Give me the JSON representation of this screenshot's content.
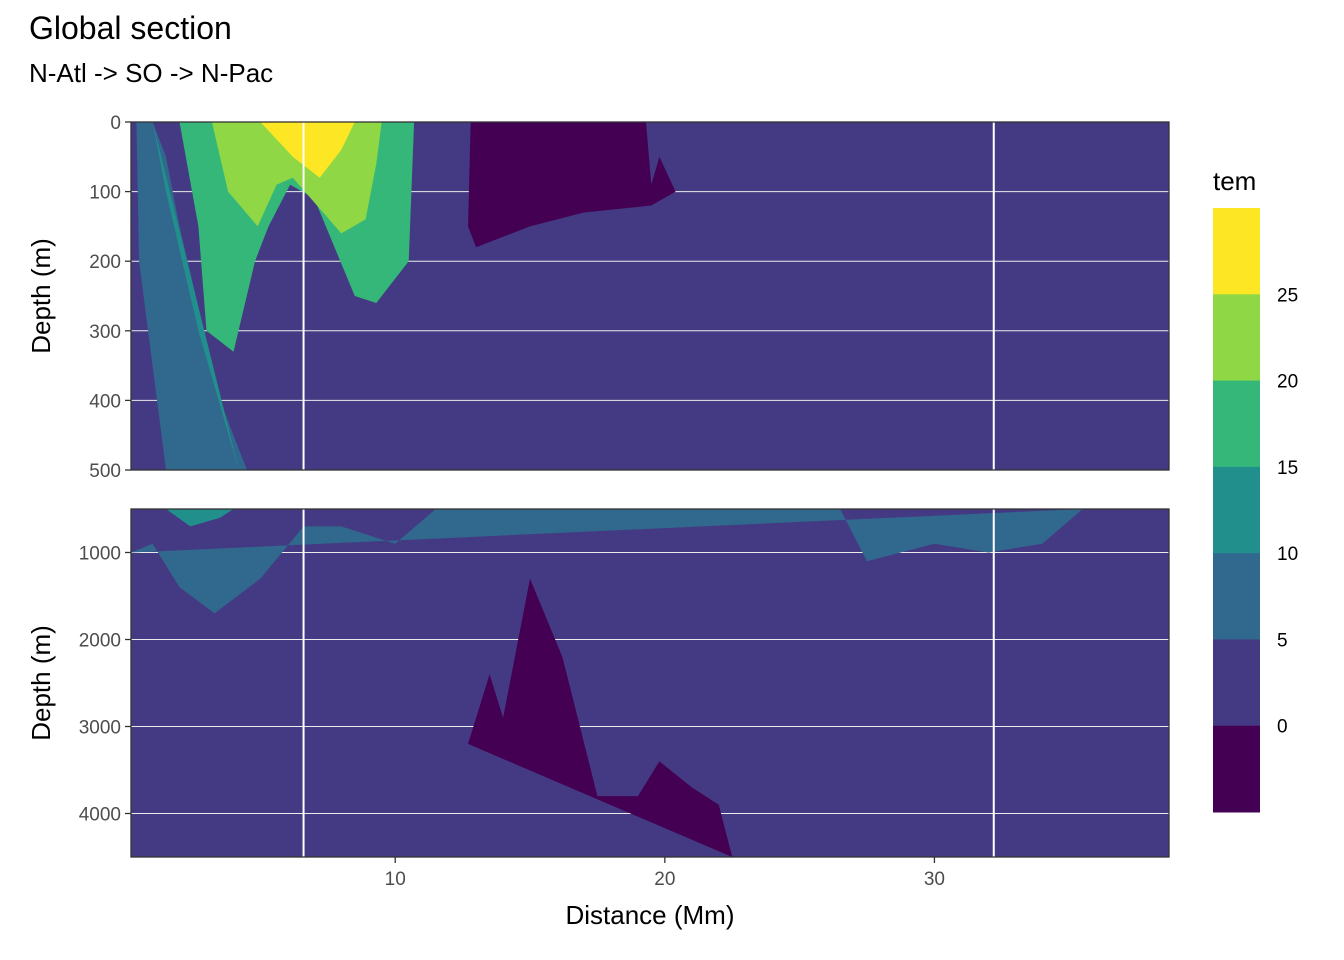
{
  "title": "Global section",
  "subtitle": "N-Atl -> SO -> N-Pac",
  "chart_data": {
    "type": "heatmap",
    "title": "Global section",
    "subtitle": "N-Atl -> SO -> N-Pac",
    "xlabel": "Distance (Mm)",
    "ylabel": "Depth (m)",
    "xlim": [
      0.2,
      38.7
    ],
    "x_ticks": [
      10,
      20,
      30
    ],
    "grid": true,
    "legend": {
      "title": "tem",
      "placement": "right",
      "breaks": [
        0,
        5,
        10,
        15,
        20,
        25
      ],
      "bins": [
        {
          "range": "< 0",
          "color": "#440154"
        },
        {
          "range": "0-5",
          "color": "#443A83"
        },
        {
          "range": "5-10",
          "color": "#31688E"
        },
        {
          "range": "10-15",
          "color": "#21908C"
        },
        {
          "range": "15-20",
          "color": "#35B779"
        },
        {
          "range": "20-25",
          "color": "#8FD744"
        },
        {
          "range": "> 25",
          "color": "#FDE725"
        }
      ]
    },
    "section_markers_mm": [
      6.6,
      32.2
    ],
    "panels": [
      {
        "name": "upper",
        "ylim": [
          0,
          500
        ],
        "y_ticks": [
          0,
          100,
          200,
          300,
          400,
          500
        ],
        "contours": [
          {
            "level": 5,
            "points": [
              [
                0.2,
                500
              ],
              [
                1.5,
                500
              ],
              [
                0.5,
                200
              ],
              [
                0.4,
                0
              ],
              [
                1,
                0
              ],
              [
                1.5,
                50
              ],
              [
                2,
                150
              ],
              [
                3.5,
                400
              ],
              [
                4.5,
                500
              ]
            ]
          },
          {
            "level": 10,
            "points": [
              [
                1,
                0
              ],
              [
                1.5,
                100
              ],
              [
                2.7,
                300
              ],
              [
                4.2,
                500
              ]
            ]
          },
          {
            "level": 15,
            "points": [
              [
                2,
                0
              ],
              [
                2.7,
                150
              ],
              [
                3,
                300
              ],
              [
                4,
                330
              ],
              [
                4.8,
                200
              ],
              [
                5.3,
                150
              ],
              [
                6.1,
                90
              ],
              [
                7,
                110
              ],
              [
                8.5,
                250
              ],
              [
                9.3,
                260
              ],
              [
                10.5,
                200
              ],
              [
                10.7,
                0
              ]
            ]
          },
          {
            "level": 20,
            "points": [
              [
                3.2,
                0
              ],
              [
                3.8,
                100
              ],
              [
                4.9,
                150
              ],
              [
                5.6,
                90
              ],
              [
                6.2,
                80
              ],
              [
                8,
                160
              ],
              [
                8.9,
                140
              ],
              [
                9.3,
                60
              ],
              [
                9.5,
                0
              ]
            ]
          },
          {
            "level": 25,
            "points": [
              [
                5,
                0
              ],
              [
                6.2,
                50
              ],
              [
                7.2,
                80
              ],
              [
                8,
                40
              ],
              [
                8.5,
                0
              ]
            ]
          }
        ],
        "cold_patch_points": [
          [
            12.8,
            0
          ],
          [
            12.7,
            150
          ],
          [
            13,
            180
          ],
          [
            15,
            150
          ],
          [
            17,
            130
          ],
          [
            19.5,
            120
          ],
          [
            20.4,
            100
          ],
          [
            19.8,
            50
          ],
          [
            19.5,
            90
          ],
          [
            19.3,
            0
          ]
        ]
      },
      {
        "name": "lower",
        "ylim": [
          500,
          4500
        ],
        "y_ticks": [
          1000,
          2000,
          3000,
          4000
        ],
        "contours": [
          {
            "level": 5,
            "points": [
              [
                0.2,
                1000
              ],
              [
                1,
                900
              ],
              [
                2,
                1400
              ],
              [
                3.3,
                1700
              ],
              [
                5,
                1300
              ],
              [
                6.6,
                700
              ],
              [
                8,
                700
              ],
              [
                10,
                900
              ],
              [
                11.5,
                500
              ],
              [
                26.5,
                500
              ],
              [
                27.5,
                1100
              ],
              [
                30,
                900
              ],
              [
                32,
                1000
              ],
              [
                34,
                900
              ],
              [
                35.5,
                500
              ]
            ]
          },
          {
            "level": 10,
            "points": [
              [
                1.5,
                500
              ],
              [
                2.4,
                700
              ],
              [
                3.5,
                600
              ],
              [
                4,
                500
              ]
            ]
          },
          {
            "level": 0,
            "points": [
              [
                12.7,
                3200
              ],
              [
                13.5,
                2400
              ],
              [
                14,
                2900
              ],
              [
                15,
                1300
              ],
              [
                16.2,
                2200
              ],
              [
                17.5,
                3800
              ],
              [
                19,
                3800
              ],
              [
                19.8,
                3400
              ],
              [
                21,
                3700
              ],
              [
                22,
                3900
              ],
              [
                22.5,
                4500
              ]
            ]
          }
        ]
      }
    ]
  }
}
